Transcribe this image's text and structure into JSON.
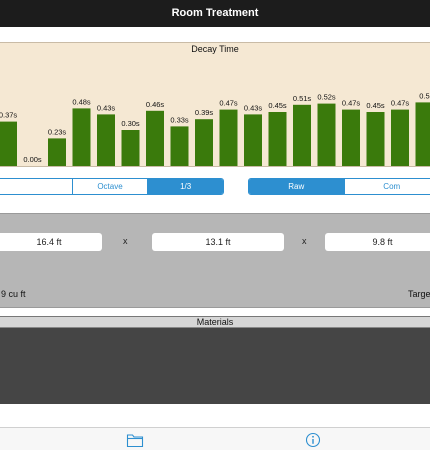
{
  "nav": {
    "title": "Room Treatment"
  },
  "chart": {
    "title": "Decay Time",
    "bar_color": "#3a7a0c",
    "background": "#f5e8d3"
  },
  "chart_data": {
    "type": "bar",
    "title": "Decay Time",
    "unit": "s",
    "labels": [
      "0.37s",
      "0.00s",
      "0.23s",
      "0.48s",
      "0.43s",
      "0.30s",
      "0.46s",
      "0.33s",
      "0.39s",
      "0.47s",
      "0.43s",
      "0.45s",
      "0.51s",
      "0.52s",
      "0.47s",
      "0.45s",
      "0.47s",
      "0.5"
    ],
    "values": [
      0.37,
      0.0,
      0.23,
      0.48,
      0.43,
      0.3,
      0.46,
      0.33,
      0.39,
      0.47,
      0.43,
      0.45,
      0.51,
      0.52,
      0.47,
      0.45,
      0.47,
      0.53
    ]
  },
  "bands": {
    "options": [
      "",
      "Octave",
      "1/3"
    ],
    "selected": "1/3"
  },
  "mode": {
    "options": [
      "Raw",
      "Com"
    ],
    "selected": "Raw"
  },
  "dimensions": {
    "width": "16.4 ft",
    "length": "13.1 ft",
    "height": "9.8 ft",
    "sep1": "x",
    "sep2": "x"
  },
  "volume": {
    "text": "9 cu ft",
    "target": "Targe"
  },
  "materials": {
    "title": "Materials"
  },
  "tabs": {
    "left_icon": "folder-icon",
    "right_icon": "info-icon",
    "accent": "#2d8fd0"
  }
}
